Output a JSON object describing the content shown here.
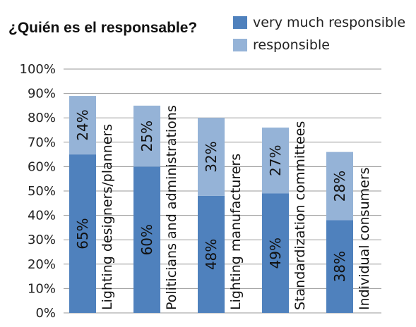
{
  "chart_data": {
    "type": "bar",
    "stacked": true,
    "title": "¿Quién es el responsable?",
    "categories": [
      "Lighting designers/planners",
      "Politicians and administrations",
      "Lighting manufacturers",
      "Standardization committees",
      "Individual consumers"
    ],
    "series": [
      {
        "name": "very much responsible",
        "color": "#4f81bd",
        "values": [
          65,
          60,
          48,
          49,
          38
        ],
        "labels": [
          "65%",
          "60%",
          "48%",
          "49%",
          "38%"
        ]
      },
      {
        "name": "responsible",
        "color": "#95b3d7",
        "values": [
          24,
          25,
          32,
          27,
          28
        ],
        "labels": [
          "24%",
          "25%",
          "32%",
          "27%",
          "28%"
        ]
      }
    ],
    "ylim": [
      0,
      100
    ],
    "yticks": [
      "0%",
      "10%",
      "20%",
      "30%",
      "40%",
      "50%",
      "60%",
      "70%",
      "80%",
      "90%",
      "100%"
    ],
    "grid": true,
    "legend_position": "top-right"
  }
}
